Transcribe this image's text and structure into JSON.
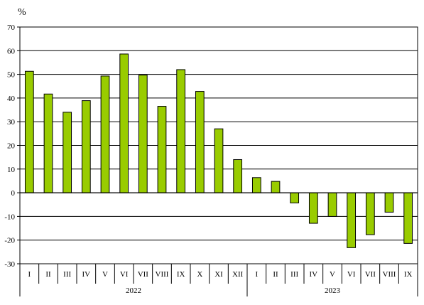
{
  "chart_data": {
    "type": "bar",
    "ylabel": "%",
    "ylim": [
      -30,
      70
    ],
    "yticks": [
      -30,
      -20,
      -10,
      0,
      10,
      20,
      30,
      40,
      50,
      60,
      70
    ],
    "grid": true,
    "legend": "none",
    "groups": [
      {
        "label": "2022",
        "categories": [
          "I",
          "II",
          "III",
          "IV",
          "V",
          "VI",
          "VII",
          "VIII",
          "IX",
          "X",
          "XI",
          "XII"
        ]
      },
      {
        "label": "2023",
        "categories": [
          "I",
          "II",
          "III",
          "IV",
          "V",
          "VI",
          "VII",
          "VIII",
          "IX"
        ]
      }
    ],
    "values": [
      51.3,
      41.7,
      34.0,
      38.9,
      49.3,
      58.6,
      49.7,
      36.5,
      52.0,
      42.8,
      27.0,
      14.0,
      6.4,
      4.8,
      -4.3,
      -12.9,
      -10.0,
      -23.2,
      -17.7,
      -8.2,
      -21.4
    ],
    "bar_color": "#99cc00",
    "bar_edge_color": "#000000"
  }
}
